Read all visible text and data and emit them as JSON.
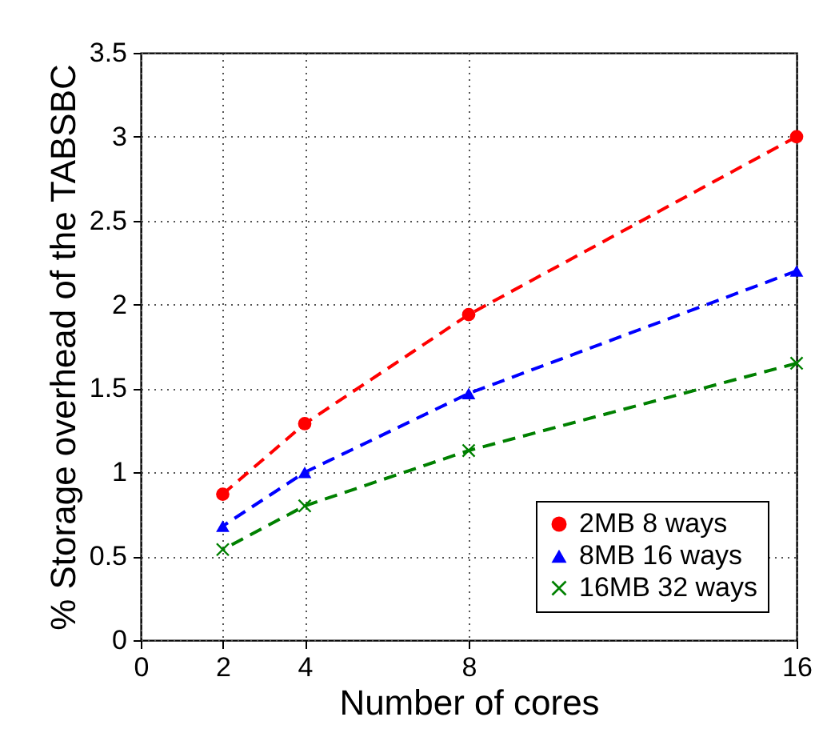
{
  "chart_data": {
    "type": "line",
    "xlabel": "Number of cores",
    "ylabel": "% Storage overhead of the TABSBC",
    "x": [
      2,
      4,
      8,
      16
    ],
    "series": [
      {
        "name": "2MB 8 ways",
        "color": "#ff0000",
        "marker": "circle",
        "values": [
          0.87,
          1.29,
          1.94,
          3.0
        ]
      },
      {
        "name": "8MB 16 ways",
        "color": "#0000ff",
        "marker": "triangle",
        "values": [
          0.68,
          1.0,
          1.47,
          2.2
        ]
      },
      {
        "name": "16MB 32 ways",
        "color": "#008000",
        "marker": "cross",
        "values": [
          0.54,
          0.8,
          1.13,
          1.65
        ]
      }
    ],
    "xlim": [
      0,
      16
    ],
    "xticks": [
      0,
      2,
      4,
      8,
      16
    ],
    "ylim": [
      0,
      3.5
    ],
    "yticks": [
      0,
      0.5,
      1,
      1.5,
      2,
      2.5,
      3,
      3.5
    ],
    "grid": true,
    "legend": "bottom right",
    "line_style": "dashed"
  }
}
